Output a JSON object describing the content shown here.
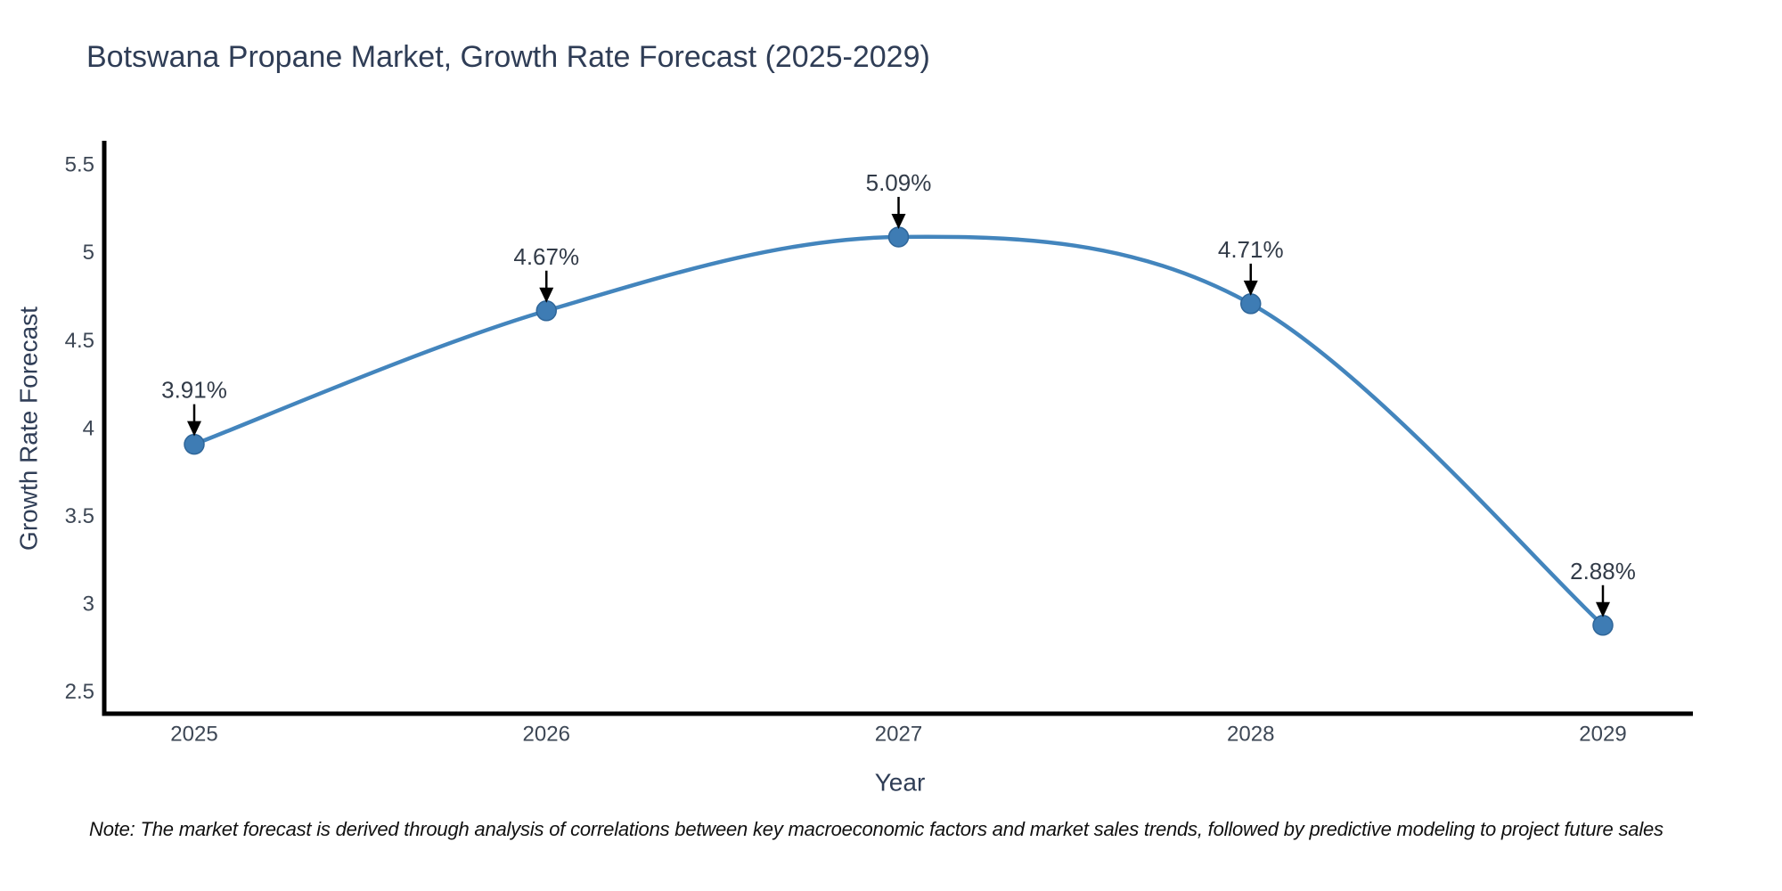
{
  "page": {
    "background": "#ffffff"
  },
  "chart_data": {
    "type": "line",
    "title": "Botswana Propane Market, Growth Rate Forecast (2025-2029)",
    "xlabel": "Year",
    "ylabel": "Growth Rate Forecast",
    "x": [
      "2025",
      "2026",
      "2027",
      "2028",
      "2029"
    ],
    "values": [
      3.91,
      4.67,
      5.09,
      4.71,
      2.88
    ],
    "point_labels": [
      "3.91%",
      "4.67%",
      "5.09%",
      "4.71%",
      "2.88%"
    ],
    "ytick_labels": [
      "2.5",
      "3",
      "3.5",
      "4",
      "4.5",
      "5",
      "5.5"
    ],
    "ytick_values": [
      2.5,
      3,
      3.5,
      4,
      4.5,
      5,
      5.5
    ],
    "ylim": [
      2.38,
      5.68
    ],
    "grid": false,
    "legend": "none",
    "annotation_style": "black-arrow-down-to-point",
    "colors": {
      "line": "#4385bd",
      "marker": "#3e7cb4",
      "marker_edge": "#2f6699",
      "axis": "#000000",
      "title_text": "#2f3d56",
      "tick_text": "#3d4755",
      "annotation_text": "#323b48",
      "arrow": "#000000",
      "note_text": "#111111"
    },
    "note": "Note: The market forecast is derived through analysis of correlations between key macroeconomic factors and market sales trends, followed by predictive modeling to project future sales"
  }
}
